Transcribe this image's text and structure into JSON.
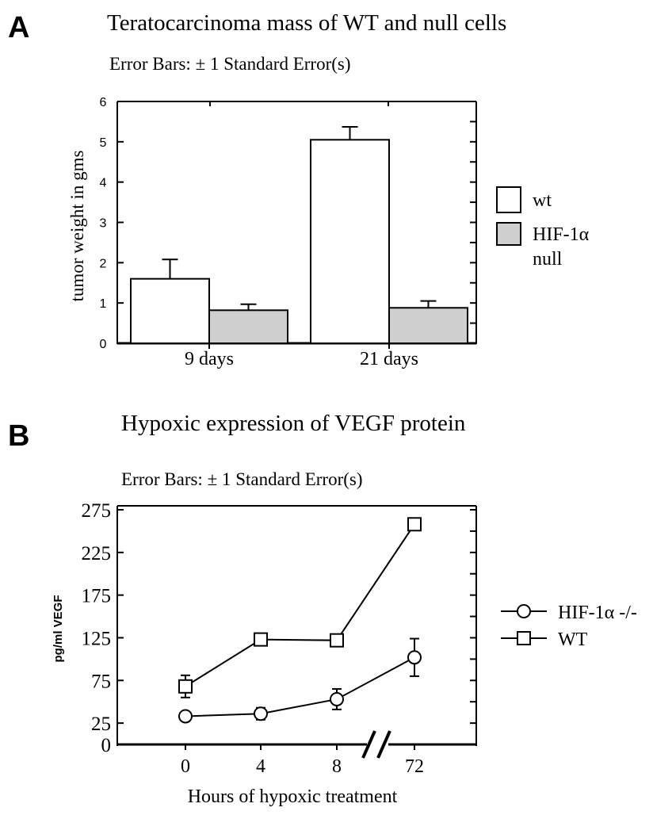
{
  "chart_data": [
    {
      "panel_label": "A",
      "type": "bar",
      "title": "Teratocarcinoma mass of WT and null cells",
      "subtitle": "Error Bars: ± 1 Standard Error(s)",
      "ylabel": "tumor weight in gms",
      "xlabel": "",
      "ylim": [
        0,
        6
      ],
      "yticks": [
        "0",
        "1",
        "2",
        "3",
        "4",
        "5",
        "6"
      ],
      "categories": [
        "9 days",
        "21 days"
      ],
      "series": [
        {
          "name": "wt",
          "fill": "#ffffff",
          "values": [
            1.6,
            5.05
          ],
          "errors": [
            0.48,
            0.32
          ]
        },
        {
          "name": "HIF-1α null",
          "fill": "#cfcfcf",
          "values": [
            0.82,
            0.88
          ],
          "errors": [
            0.15,
            0.17
          ]
        }
      ],
      "legend_position": "right",
      "legend": [
        {
          "label": "wt"
        },
        {
          "label_line1": "HIF-1α",
          "label_line2": "null"
        }
      ]
    },
    {
      "panel_label": "B",
      "type": "line",
      "title": "Hypoxic expression of VEGF protein",
      "subtitle": "Error Bars: ± 1 Standard Error(s)",
      "ylabel": "pg/ml VEGF",
      "xlabel": "Hours of hypoxic treatment",
      "ylim": [
        0,
        275
      ],
      "yticks": [
        "0",
        "25",
        "75",
        "125",
        "175",
        "225",
        "275"
      ],
      "xticks": [
        "0",
        "4",
        "8",
        "72"
      ],
      "axis_break": true,
      "series": [
        {
          "name": "HIF-1α -/-",
          "marker": "circle",
          "values": [
            33,
            36,
            53,
            102
          ],
          "errors": [
            5,
            7,
            12,
            22
          ]
        },
        {
          "name": "WT",
          "marker": "square",
          "values": [
            68,
            123,
            122,
            258
          ],
          "errors": [
            13,
            0,
            0,
            0
          ]
        }
      ],
      "legend_position": "right",
      "legend": [
        {
          "label": "HIF-1α -/-"
        },
        {
          "label": "WT"
        }
      ]
    }
  ]
}
